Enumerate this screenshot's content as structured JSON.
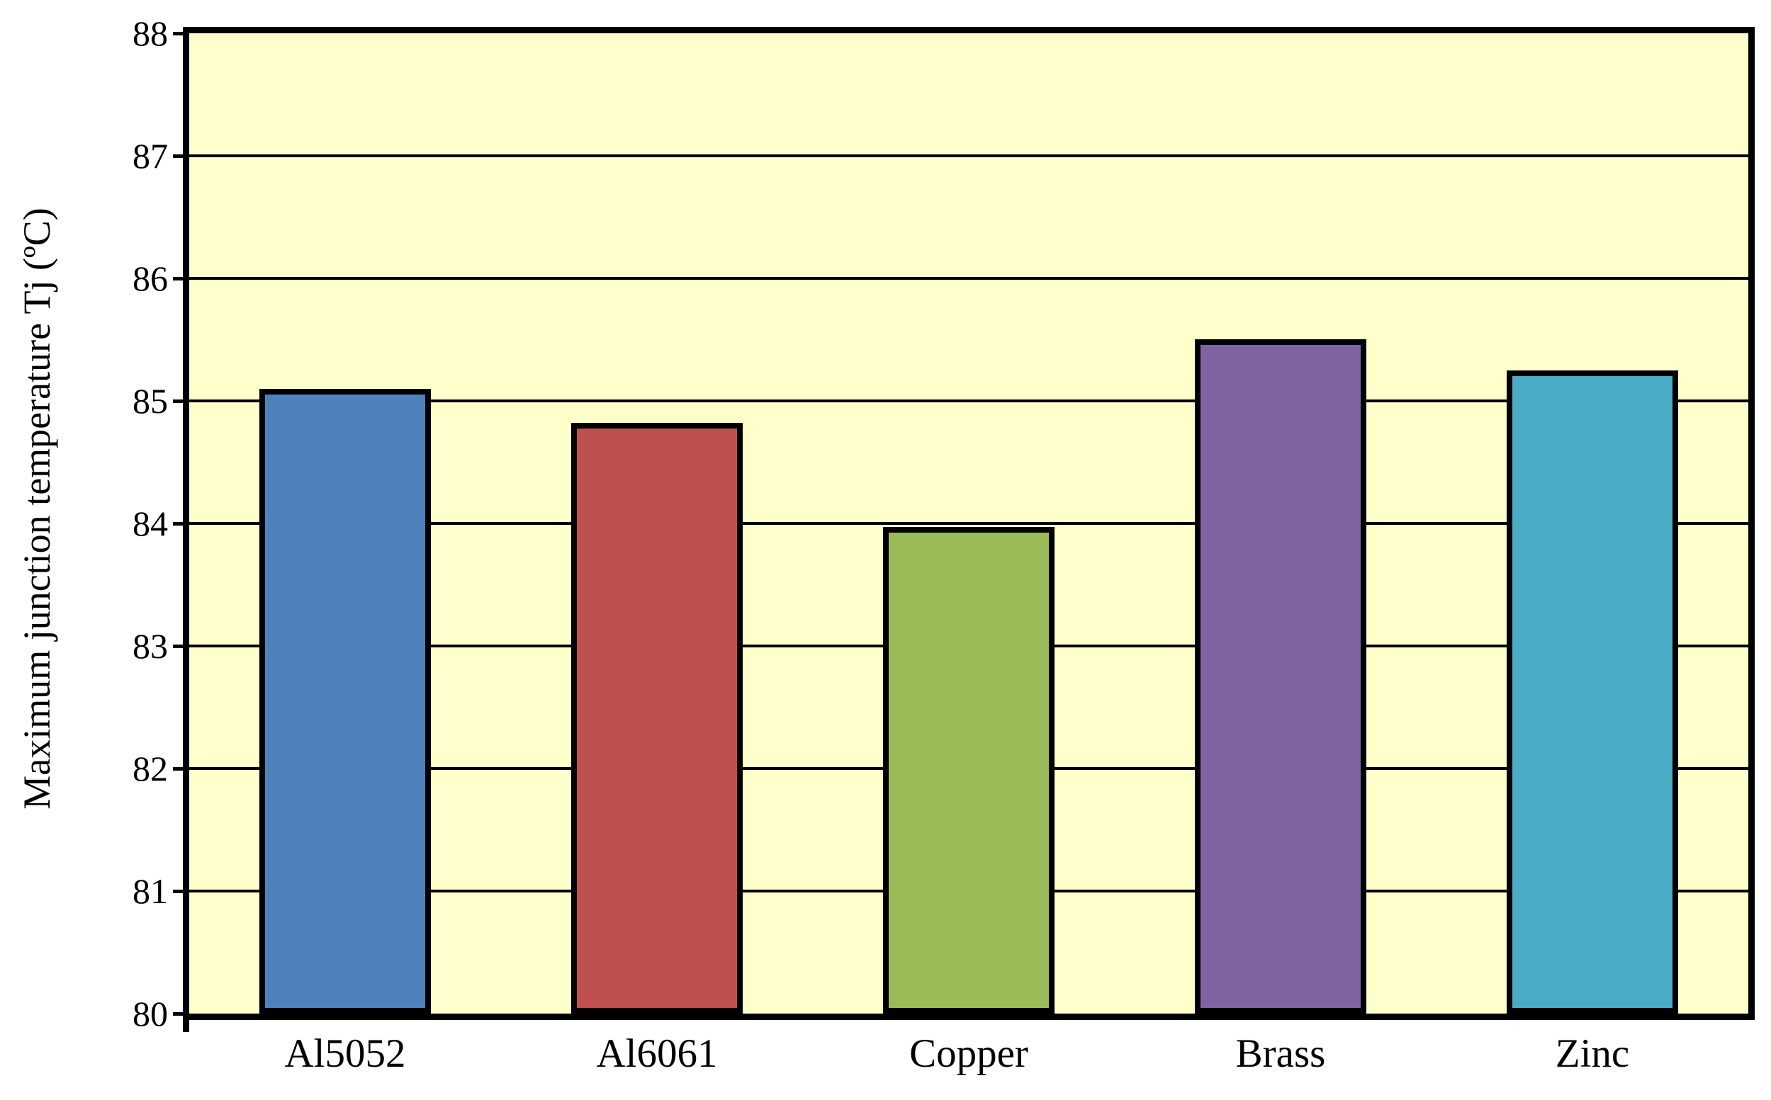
{
  "chart_data": {
    "type": "bar",
    "categories": [
      "Al5052",
      "Al6061",
      "Copper",
      "Brass",
      "Zinc"
    ],
    "values": [
      85.1,
      84.82,
      83.97,
      85.5,
      85.25
    ],
    "series": [
      {
        "name": "Maximum junction temperature",
        "values": [
          85.1,
          84.82,
          83.97,
          85.5,
          85.25
        ]
      }
    ],
    "title": "",
    "xlabel": "",
    "ylabel": "Maximum junction temperature Tj (ºC)",
    "ylim": [
      80,
      88
    ],
    "ytick_step": 1,
    "ytick_labels": [
      "80",
      "81",
      "82",
      "83",
      "84",
      "85",
      "86",
      "87",
      "88"
    ],
    "grid": true,
    "legend_position": "none",
    "bar_colors": [
      "#4F81BD",
      "#C0504D",
      "#9BBB59",
      "#8064A2",
      "#4BACC6"
    ],
    "plot_background": "#FFFFCC",
    "outer_background": "#FFFFFF",
    "axis_color": "#000000",
    "gridline_color": "#000000",
    "bar_border_color": "#000000"
  }
}
